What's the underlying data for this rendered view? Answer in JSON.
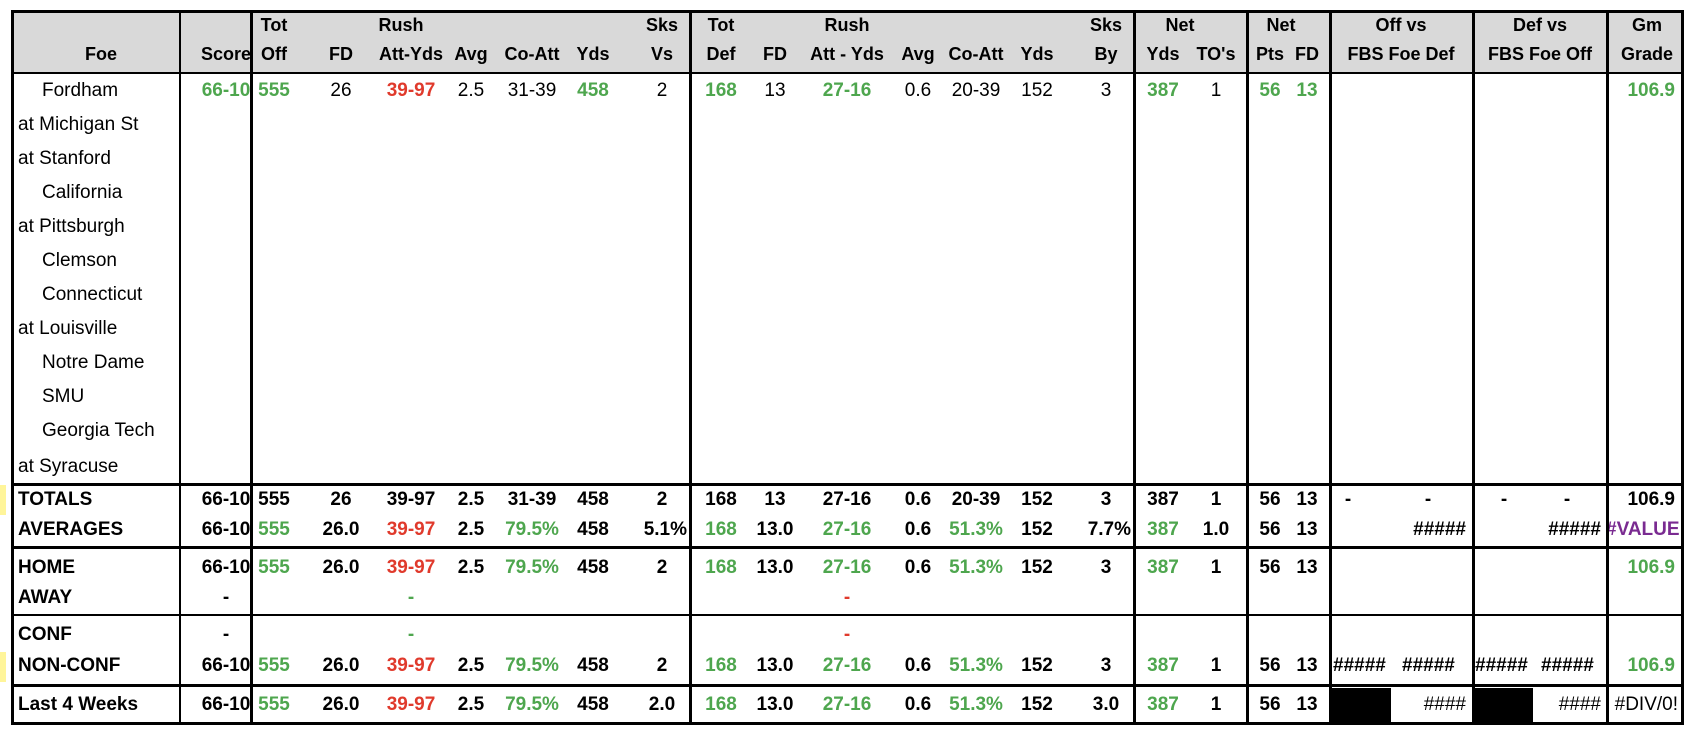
{
  "header": {
    "foe": "Foe",
    "score": "Score",
    "tot_off_1": "Tot",
    "tot_off_2": "Off",
    "fd": "FD",
    "rush_1": "Rush",
    "rush_att_yds": "Att-Yds",
    "avg": "Avg",
    "co_att": "Co-Att",
    "yds": "Yds",
    "sks_1": "Sks",
    "sks_vs": "Vs",
    "tot_def_1": "Tot",
    "tot_def_2": "Def",
    "def_fd": "FD",
    "def_rush_1": "Rush",
    "def_rush_att_yds": "Att - Yds",
    "def_avg": "Avg",
    "def_co_att": "Co-Att",
    "def_yds": "Yds",
    "sks_by_1": "Sks",
    "sks_by": "By",
    "net_1": "Net",
    "net_yds": "Yds",
    "net_tos": "TO's",
    "net2_1": "Net",
    "net_pts": "Pts",
    "net_fd": "FD",
    "off_vs_1": "Off vs",
    "off_vs_2": "FBS Foe Def",
    "def_vs_1": "Def vs",
    "def_vs_2": "FBS Foe Off",
    "gm_1": "Gm",
    "gm_2": "Grade"
  },
  "games": [
    {
      "foe": "Fordham",
      "score": "66-10",
      "tot_off": "555",
      "fd": "26",
      "rush": "39-97",
      "avg": "2.5",
      "co_att": "31-39",
      "yds": "458",
      "sks_vs": "2",
      "tot_def": "168",
      "def_fd": "13",
      "def_rush": "27-16",
      "def_avg": "0.6",
      "def_co_att": "20-39",
      "def_yds": "152",
      "sks_by": "3",
      "net_yds": "387",
      "net_to": "1",
      "net_pts": "56",
      "net_fd": "13",
      "grade": "106.9"
    },
    {
      "foe": "at Michigan St"
    },
    {
      "foe": "at Stanford"
    },
    {
      "foe": "California"
    },
    {
      "foe": "at Pittsburgh"
    },
    {
      "foe": "Clemson"
    },
    {
      "foe": "Connecticut"
    },
    {
      "foe": "at Louisville"
    },
    {
      "foe": "Notre Dame"
    },
    {
      "foe": "SMU"
    },
    {
      "foe": "Georgia Tech"
    },
    {
      "foe": "at Syracuse"
    }
  ],
  "totals": {
    "label": "TOTALS",
    "score": "66-10",
    "tot_off": "555",
    "fd": "26",
    "rush": "39-97",
    "avg": "2.5",
    "co_att": "31-39",
    "yds": "458",
    "sks_vs": "2",
    "tot_def": "168",
    "def_fd": "13",
    "def_rush": "27-16",
    "def_avg": "0.6",
    "def_co_att": "20-39",
    "def_yds": "152",
    "sks_by": "3",
    "net_yds": "387",
    "net_to": "1",
    "net_pts": "56",
    "net_fd": "13",
    "off_a": "-",
    "off_b": "-",
    "def_a": "-",
    "def_b": "-",
    "grade": "106.9"
  },
  "averages": {
    "label": "AVERAGES",
    "score": "66-10",
    "tot_off": "555",
    "fd": "26.0",
    "rush": "39-97",
    "avg": "2.5",
    "co_att": "79.5%",
    "yds": "458",
    "sks_vs": "5.1%",
    "tot_def": "168",
    "def_fd": "13.0",
    "def_rush": "27-16",
    "def_avg": "0.6",
    "def_co_att": "51.3%",
    "def_yds": "152",
    "sks_by": "7.7%",
    "net_yds": "387",
    "net_to": "1.0",
    "net_pts": "56",
    "net_fd": "13",
    "off_b": "#####",
    "def_b": "#####",
    "grade": "#VALUE!"
  },
  "home": {
    "label": "HOME",
    "score": "66-10",
    "tot_off": "555",
    "fd": "26.0",
    "rush": "39-97",
    "avg": "2.5",
    "co_att": "79.5%",
    "yds": "458",
    "sks_vs": "2",
    "tot_def": "168",
    "def_fd": "13.0",
    "def_rush": "27-16",
    "def_avg": "0.6",
    "def_co_att": "51.3%",
    "def_yds": "152",
    "sks_by": "3",
    "net_yds": "387",
    "net_to": "1",
    "net_pts": "56",
    "net_fd": "13",
    "grade": "106.9"
  },
  "away": {
    "label": "AWAY",
    "score": "-",
    "rush": "-",
    "def_rush": "-"
  },
  "conf": {
    "label": "CONF",
    "score": "-",
    "rush": "-",
    "def_rush": "-"
  },
  "nonconf": {
    "label": "NON-CONF",
    "score": "66-10",
    "tot_off": "555",
    "fd": "26.0",
    "rush": "39-97",
    "avg": "2.5",
    "co_att": "79.5%",
    "yds": "458",
    "sks_vs": "2",
    "tot_def": "168",
    "def_fd": "13.0",
    "def_rush": "27-16",
    "def_avg": "0.6",
    "def_co_att": "51.3%",
    "def_yds": "152",
    "sks_by": "3",
    "net_yds": "387",
    "net_to": "1",
    "net_pts": "56",
    "net_fd": "13",
    "off_a": "#####",
    "off_b": "#####",
    "def_a": "#####",
    "def_b": "#####",
    "grade": "106.9"
  },
  "last4": {
    "label": "Last 4 Weeks",
    "score": "66-10",
    "tot_off": "555",
    "fd": "26.0",
    "rush": "39-97",
    "avg": "2.5",
    "co_att": "79.5%",
    "yds": "458",
    "sks_vs": "2.0",
    "tot_def": "168",
    "def_fd": "13.0",
    "def_rush": "27-16",
    "def_avg": "0.6",
    "def_co_att": "51.3%",
    "def_yds": "152",
    "sks_by": "3.0",
    "net_yds": "387",
    "net_to": "1",
    "net_pts": "56",
    "net_fd": "13",
    "off_b": "####",
    "def_b": "####",
    "grade": "#DIV/0!"
  },
  "colors": {
    "good": "#4ea64e",
    "bad": "#e03a2c",
    "error": "#7a2b91",
    "header_bg": "#d9d9d9"
  }
}
